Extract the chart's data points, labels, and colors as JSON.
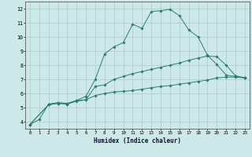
{
  "xlabel": "Humidex (Indice chaleur)",
  "background_color": "#cce8e8",
  "grid_color": "#b0d0d0",
  "line_color": "#2e7d6e",
  "xlim": [
    -0.5,
    23.5
  ],
  "ylim": [
    3.5,
    12.5
  ],
  "xticks": [
    0,
    1,
    2,
    3,
    4,
    5,
    6,
    7,
    8,
    9,
    10,
    11,
    12,
    13,
    14,
    15,
    16,
    17,
    18,
    19,
    20,
    21,
    22,
    23
  ],
  "yticks": [
    4,
    5,
    6,
    7,
    8,
    9,
    10,
    11,
    12
  ],
  "series": [
    {
      "x": [
        0,
        1,
        2,
        3,
        4,
        5,
        6,
        7,
        8,
        9,
        10,
        11,
        12,
        13,
        14,
        15,
        16,
        17,
        18,
        19,
        20,
        21,
        22,
        23
      ],
      "y": [
        3.8,
        4.15,
        5.25,
        5.35,
        5.3,
        5.5,
        5.8,
        7.0,
        8.8,
        9.3,
        9.6,
        10.9,
        10.6,
        11.8,
        11.85,
        11.95,
        11.5,
        10.5,
        10.0,
        8.7,
        8.05,
        7.3,
        7.2,
        7.1
      ]
    },
    {
      "x": [
        0,
        2,
        3,
        4,
        5,
        6,
        7,
        8,
        9,
        10,
        11,
        12,
        13,
        14,
        15,
        16,
        17,
        18,
        19,
        20,
        21,
        22,
        23
      ],
      "y": [
        3.8,
        5.2,
        5.3,
        5.25,
        5.5,
        5.55,
        6.5,
        6.6,
        7.0,
        7.2,
        7.4,
        7.55,
        7.7,
        7.85,
        8.0,
        8.15,
        8.35,
        8.5,
        8.65,
        8.6,
        8.0,
        7.25,
        7.1
      ]
    },
    {
      "x": [
        0,
        2,
        3,
        4,
        5,
        6,
        7,
        8,
        9,
        10,
        11,
        12,
        13,
        14,
        15,
        16,
        17,
        18,
        19,
        20,
        21,
        22,
        23
      ],
      "y": [
        3.8,
        5.2,
        5.3,
        5.25,
        5.45,
        5.55,
        5.85,
        6.0,
        6.1,
        6.15,
        6.2,
        6.3,
        6.4,
        6.5,
        6.55,
        6.65,
        6.75,
        6.85,
        6.95,
        7.1,
        7.15,
        7.15,
        7.1
      ]
    }
  ]
}
